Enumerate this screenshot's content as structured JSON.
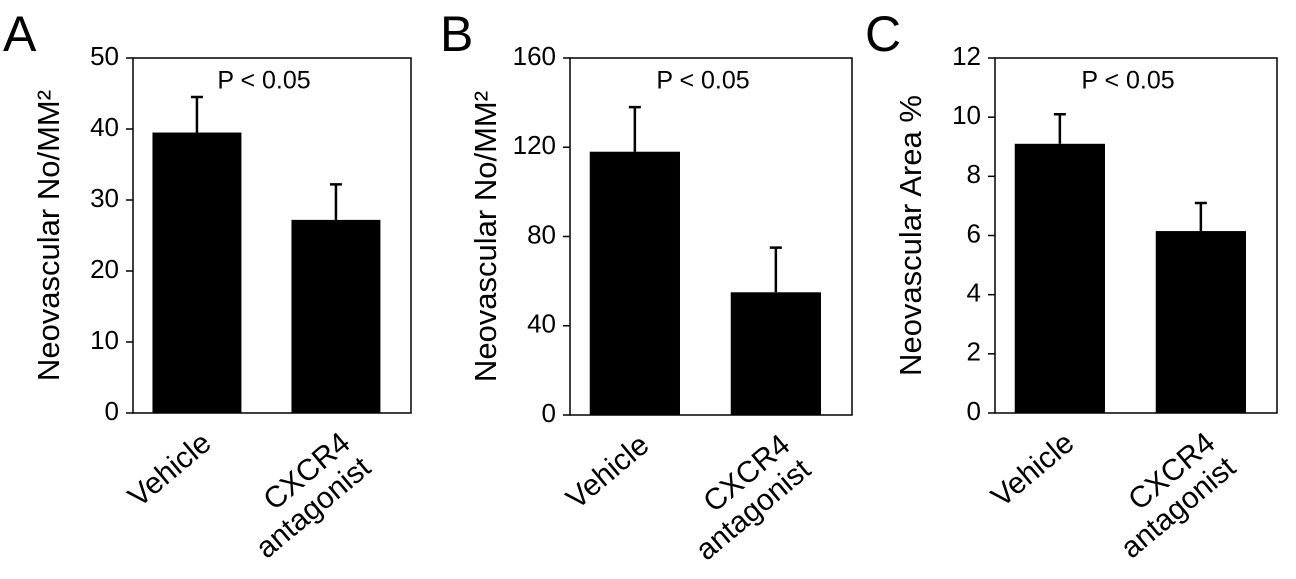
{
  "chart_data": [
    {
      "type": "bar",
      "panel": "A",
      "ylabel": "Neovascular No/MM²",
      "annotation": "P < 0.05",
      "categories": [
        "Vehicle",
        "CXCR4 antagonist"
      ],
      "values": [
        39.5,
        27.2
      ],
      "errors": [
        5,
        5
      ],
      "color": "#000000",
      "ylim": [
        0,
        50
      ],
      "yticks": [
        0,
        10,
        20,
        30,
        40,
        50
      ]
    },
    {
      "type": "bar",
      "panel": "B",
      "ylabel": "Neovascular No/MM²",
      "annotation": "P < 0.05",
      "categories": [
        "Vehicle",
        "CXCR4 antagonist"
      ],
      "values": [
        118,
        55
      ],
      "errors": [
        20,
        20
      ],
      "color": "#000000",
      "ylim": [
        0,
        160
      ],
      "yticks": [
        0,
        40,
        80,
        120,
        160
      ]
    },
    {
      "type": "bar",
      "panel": "C",
      "ylabel": "Neovascular Area %",
      "annotation": "P < 0.05",
      "categories": [
        "Vehicle",
        "CXCR4 antagonist"
      ],
      "values": [
        9.1,
        6.15
      ],
      "errors": [
        1,
        0.95
      ],
      "color": "#000000",
      "ylim": [
        0,
        12
      ],
      "yticks": [
        0,
        2,
        4,
        6,
        8,
        10,
        12
      ]
    }
  ]
}
